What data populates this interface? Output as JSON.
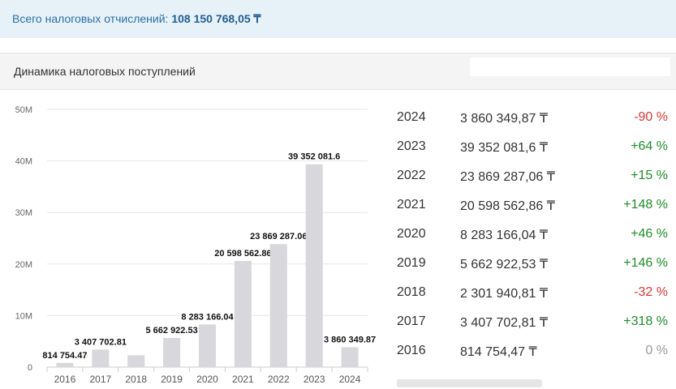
{
  "banner": {
    "label": "Всего налоговых отчислений:",
    "total": "108 150 768,05 ₸"
  },
  "section": {
    "title": "Динамика налоговых поступлений",
    "input_value": ""
  },
  "table": {
    "rows": [
      {
        "year": "2024",
        "amount": "3 860 349,87 ₸",
        "change": "-90 %",
        "trend": "neg"
      },
      {
        "year": "2023",
        "amount": "39 352 081,6 ₸",
        "change": "+64 %",
        "trend": "pos"
      },
      {
        "year": "2022",
        "amount": "23 869 287,06 ₸",
        "change": "+15 %",
        "trend": "pos"
      },
      {
        "year": "2021",
        "amount": "20 598 562,86 ₸",
        "change": "+148 %",
        "trend": "pos"
      },
      {
        "year": "2020",
        "amount": "8 283 166,04 ₸",
        "change": "+46 %",
        "trend": "pos"
      },
      {
        "year": "2019",
        "amount": "5 662 922,53 ₸",
        "change": "+146 %",
        "trend": "pos"
      },
      {
        "year": "2018",
        "amount": "2 301 940,81 ₸",
        "change": "-32 %",
        "trend": "neg"
      },
      {
        "year": "2017",
        "amount": "3 407 702,81 ₸",
        "change": "+318 %",
        "trend": "pos"
      },
      {
        "year": "2016",
        "amount": "814 754,47 ₸",
        "change": "0 %",
        "trend": "zero"
      }
    ]
  },
  "chart_data": {
    "type": "bar",
    "categories": [
      "2016",
      "2017",
      "2018",
      "2019",
      "2020",
      "2021",
      "2022",
      "2023",
      "2024"
    ],
    "values": [
      814754.47,
      3407702.81,
      2301940.81,
      5662922.53,
      8283166.04,
      20598562.86,
      23869287.06,
      39352081.6,
      3860349.87
    ],
    "data_labels": [
      "814 754.47",
      "3 407 702.81",
      "",
      "5 662 922.53",
      "8 283 166.04",
      "20 598 562.86",
      "23 869 287.06",
      "39 352 081.6",
      "3 860 349.87"
    ],
    "y_ticks": [
      0,
      10000000,
      20000000,
      30000000,
      40000000,
      50000000
    ],
    "y_tick_labels": [
      "0",
      "10M",
      "20M",
      "30M",
      "40M",
      "50M"
    ],
    "ylim": [
      0,
      50000000
    ],
    "grid": true,
    "bar_color": "#d8d8dc",
    "title": "",
    "xlabel": "",
    "ylabel": ""
  }
}
